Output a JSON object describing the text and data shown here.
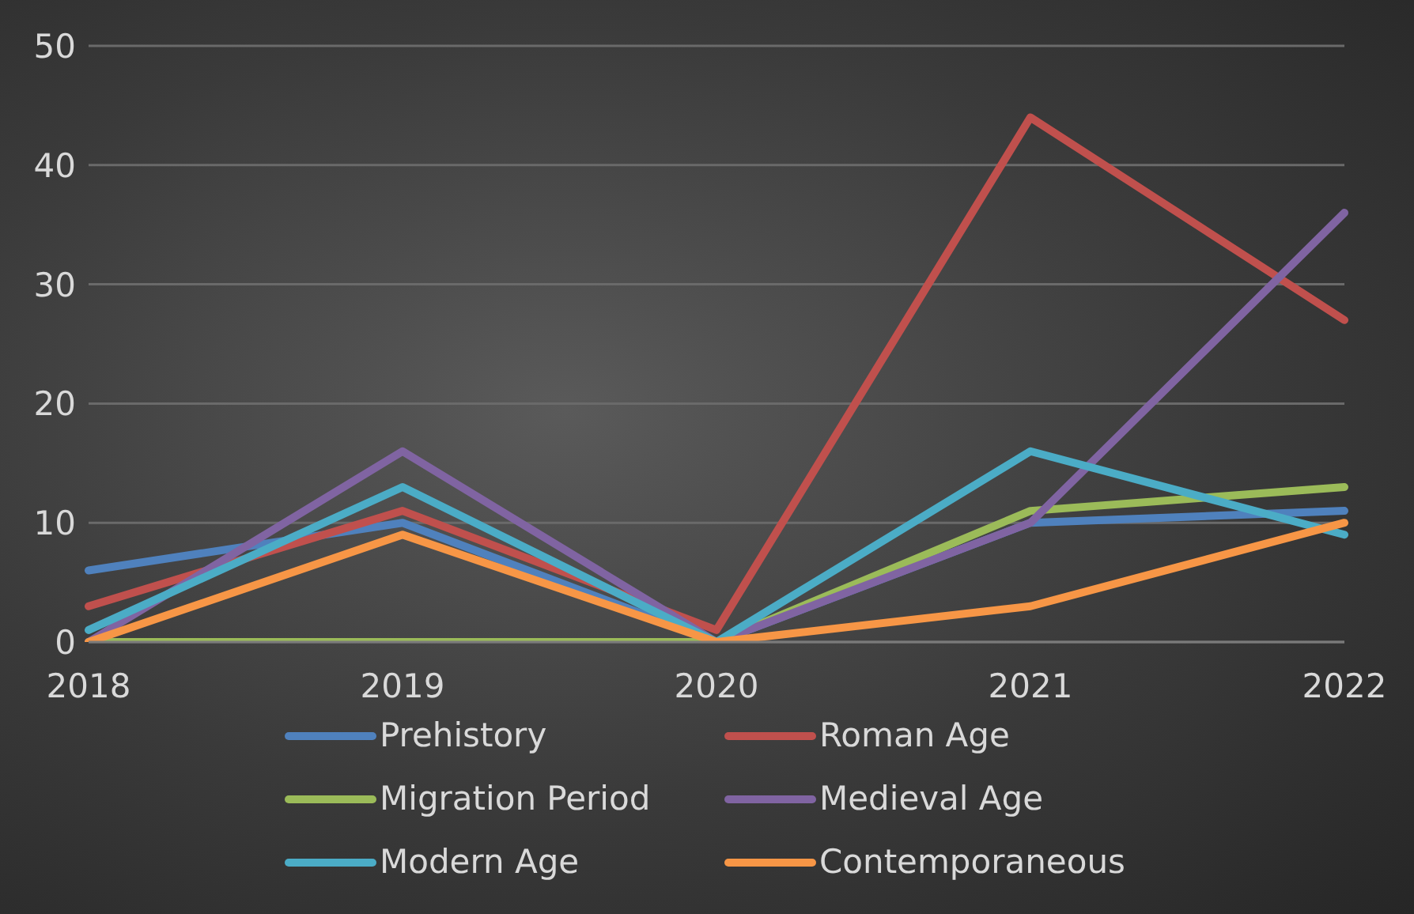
{
  "chart_data": {
    "type": "line",
    "categories": [
      "2018",
      "2019",
      "2020",
      "2021",
      "2022"
    ],
    "series": [
      {
        "name": "Prehistory",
        "color": "#4f81bd",
        "values": [
          6,
          10,
          0,
          10,
          11
        ]
      },
      {
        "name": "Roman Age",
        "color": "#c0504d",
        "values": [
          3,
          11,
          1,
          44,
          27
        ]
      },
      {
        "name": "Migration Period",
        "color": "#9bbb59",
        "values": [
          0,
          0,
          0,
          11,
          13
        ]
      },
      {
        "name": "Medieval Age",
        "color": "#8064a2",
        "values": [
          0,
          16,
          0,
          10,
          36
        ]
      },
      {
        "name": "Modern Age",
        "color": "#4bacc6",
        "values": [
          1,
          13,
          0,
          16,
          9
        ]
      },
      {
        "name": "Contemporaneous",
        "color": "#f79646",
        "values": [
          0,
          9,
          0,
          3,
          10
        ]
      }
    ],
    "ylim": [
      0,
      50
    ],
    "yticks": [
      0,
      10,
      20,
      30,
      40,
      50
    ],
    "grid": "y",
    "legend": "bottom",
    "marker": "none",
    "line_style": "solid"
  }
}
